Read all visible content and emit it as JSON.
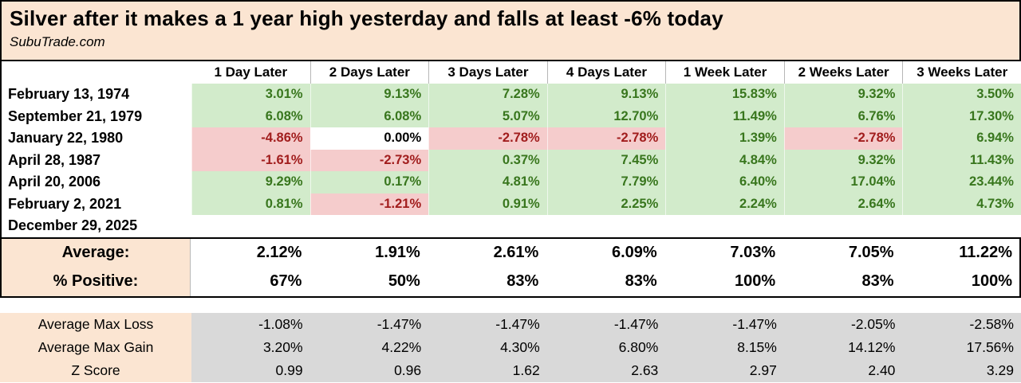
{
  "colors": {
    "header_bg": "#fbe5d2",
    "positive_bg": "#d2ebcb",
    "negative_bg": "#f5cccc",
    "positive_text": "#38761d",
    "negative_text": "#a11d1d",
    "stats_bg": "#d9d9d9"
  },
  "chart_data": {
    "type": "table",
    "title": "Silver after it makes a 1 year high yesterday and falls at least -6% today",
    "source": "SubuTrade.com",
    "columns": [
      "1 Day Later",
      "2 Days Later",
      "3 Days Later",
      "4 Days Later",
      "1 Week Later",
      "2 Weeks Later",
      "3 Weeks Later"
    ],
    "rows": [
      {
        "date": "February 13, 1974",
        "values": [
          "3.01%",
          "9.13%",
          "7.28%",
          "9.13%",
          "15.83%",
          "9.32%",
          "3.50%"
        ]
      },
      {
        "date": "September 21, 1979",
        "values": [
          "6.08%",
          "6.08%",
          "5.07%",
          "12.70%",
          "11.49%",
          "6.76%",
          "17.30%"
        ]
      },
      {
        "date": "January 22, 1980",
        "values": [
          "-4.86%",
          "0.00%",
          "-2.78%",
          "-2.78%",
          "1.39%",
          "-2.78%",
          "6.94%"
        ]
      },
      {
        "date": "April 28, 1987",
        "values": [
          "-1.61%",
          "-2.73%",
          "0.37%",
          "7.45%",
          "4.84%",
          "9.32%",
          "11.43%"
        ]
      },
      {
        "date": "April 20, 2006",
        "values": [
          "9.29%",
          "0.17%",
          "4.81%",
          "7.79%",
          "6.40%",
          "17.04%",
          "23.44%"
        ]
      },
      {
        "date": "February 2, 2021",
        "values": [
          "0.81%",
          "-1.21%",
          "0.91%",
          "2.25%",
          "2.24%",
          "2.64%",
          "4.73%"
        ]
      },
      {
        "date": "December 29, 2025",
        "values": [
          "",
          "",
          "",
          "",
          "",
          "",
          ""
        ]
      }
    ],
    "summary": {
      "average_label": "Average:",
      "average_values": [
        "2.12%",
        "1.91%",
        "2.61%",
        "6.09%",
        "7.03%",
        "7.05%",
        "11.22%"
      ],
      "positive_label": "% Positive:",
      "positive_values": [
        "67%",
        "50%",
        "83%",
        "83%",
        "100%",
        "83%",
        "100%"
      ]
    },
    "stats": [
      {
        "label": "Average Max Loss",
        "values": [
          "-1.08%",
          "-1.47%",
          "-1.47%",
          "-1.47%",
          "-1.47%",
          "-2.05%",
          "-2.58%"
        ]
      },
      {
        "label": "Average Max Gain",
        "values": [
          "3.20%",
          "4.22%",
          "4.30%",
          "6.80%",
          "8.15%",
          "14.12%",
          "17.56%"
        ]
      },
      {
        "label": "Z Score",
        "values": [
          "0.99",
          "0.96",
          "1.62",
          "2.63",
          "2.97",
          "2.40",
          "3.29"
        ]
      }
    ]
  }
}
